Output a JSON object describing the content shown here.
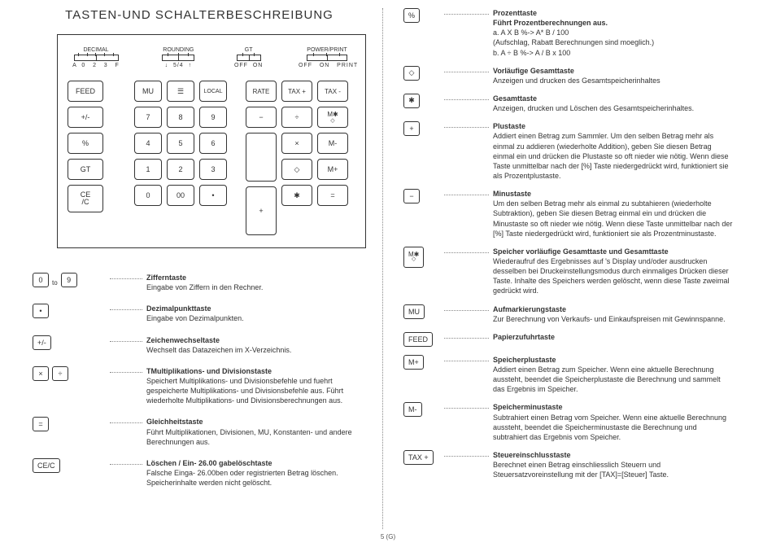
{
  "title": "TASTEN-UND SCHALTERBESCHREIBUNG",
  "page_num": "5 (G)",
  "switches": {
    "decimal": {
      "label": "DECIMAL",
      "vals": "A  0   2   3   F"
    },
    "rounding": {
      "label": "ROUNDING",
      "vals": "↓  5/4  ↑"
    },
    "gt": {
      "label": "GT",
      "vals": "OFF  ON"
    },
    "power": {
      "label": "POWER/PRINT",
      "vals": "OFF   ON   PRINT"
    }
  },
  "keys": {
    "row1": {
      "feed": "FEED",
      "mu": "MU",
      "paper": "☰",
      "local": "LOCAL",
      "rate": "RATE",
      "taxplus": "TAX +",
      "taxminus": "TAX -"
    },
    "row2": {
      "pm": "+/-",
      "n7": "7",
      "n8": "8",
      "n9": "9",
      "minus": "−",
      "div": "÷",
      "mstar_top": "M✱",
      "mstar_sub": "◇"
    },
    "row3": {
      "pct": "%",
      "n4": "4",
      "n5": "5",
      "n6": "6",
      "times": "×",
      "mminus": "M-"
    },
    "row4": {
      "gt": "GT",
      "n1": "1",
      "n2": "2",
      "n3": "3",
      "plus": "+",
      "diamond": "◇",
      "mplus": "M+"
    },
    "row5a": "CE",
    "row5b": "/C",
    "row5": {
      "n0": "0",
      "n00": "00",
      "dot": "•",
      "star": "✱",
      "eq": "="
    }
  },
  "left_items": [
    {
      "keys": [
        "0",
        "to",
        "9"
      ],
      "title": "Zifferntaste",
      "body": "Eingabe von Ziffern in den Rechner."
    },
    {
      "keys": [
        "•"
      ],
      "title": "Dezimalpunkttaste",
      "body": "Eingabe von Dezimalpunkten."
    },
    {
      "keys": [
        "+/-"
      ],
      "title": "Zeichenwechseltaste",
      "body": "Wechselt das Datazeichen im X-Verzeichnis."
    },
    {
      "keys": [
        "×",
        "÷"
      ],
      "title": "TMultiplikations- und Divisionstaste",
      "body": "Speichert Multiplikations- und Divisionsbefehle und fuehrt gespeicherte Multiplikations- und Divisionsbefehle aus. Führt wiederholte Multiplikations- und Divisionsberechnungen aus."
    },
    {
      "keys": [
        "="
      ],
      "title": "Gleichheitstaste",
      "body": "Führt Multiplikationen, Divisionen, MU, Konstanten- und andere Berechnungen aus."
    },
    {
      "keys": [
        "CE/C"
      ],
      "title": "Löschen / Ein- 26.00\ngabelöschtaste",
      "body": "Falsche Einga- 26.00ben oder registrierten Betrag löschen. Speicherinhalte werden nicht gelöscht."
    }
  ],
  "right_items": [
    {
      "keys": [
        "%"
      ],
      "title": "Prozenttaste",
      "body": "Führt Prozentberechnungen aus.\na. A X B %-> A* B / 100\n(Aufschlag, Rabatt Berechnungen sind moeglich.)\nb.   A ÷ B %-> A / B x 100"
    },
    {
      "keys": [
        "◇"
      ],
      "title": "Vorläufige Gesamttaste",
      "body": "Anzeigen und drucken des Gesamtspeicherinhaltes"
    },
    {
      "keys": [
        "✱"
      ],
      "title": "Gesamttaste",
      "body": "Anzeigen, drucken und Löschen des Gesamtspeicherinhaltes."
    },
    {
      "keys": [
        "+"
      ],
      "title": "Plustaste",
      "body": "Addiert einen Betrag zum Sammler. Um den selben Betrag mehr als einmal zu addieren (wiederholte Addition), geben Sie diesen Betrag einmal ein und drücken die Plustaste so oft nieder wie nötig. Wenn diese Taste unmittelbar nach der [%] Taste niedergedrückt wird, funktioniert sie als Prozentplustaste."
    },
    {
      "keys": [
        "−"
      ],
      "title": "Minustaste",
      "body": "Um den selben Betrag mehr als einmal zu subtahieren (wiederholte Subtraktion), geben Sie diesen Betrag einmal ein und drücken die Minustaste so oft nieder wie nötig. Wenn diese Taste unmittelbar nach der [%] Taste niedergedrückt wird, funktioniert sie als Prozentminustaste."
    },
    {
      "keys": [
        "M✱◇"
      ],
      "title": "Speicher vorläufige Gesamttaste und Gesamttaste",
      "body": "Wiederaufruf des Ergebnisses auf 's Display und/oder ausdrucken desselben bei Druckeinstellungsmodus durch einmaliges Drücken dieser Taste. Inhalte des Speichers werden gelöscht, wenn diese Taste zweimal gedrückt wird.",
      "special": "mstar"
    },
    {
      "keys": [
        "MU"
      ],
      "title": "Aufmarkierungstaste",
      "body": "Zur Berechnung von Verkaufs- und Einkaufspreisen mit Gewinnspanne."
    },
    {
      "keys": [
        "FEED"
      ],
      "title": "Papierzufuhrtaste",
      "body": ""
    },
    {
      "keys": [
        "M+"
      ],
      "title": "Speicherplustaste",
      "body": "Addiert einen Betrag zum Speicher. Wenn eine aktuelle Berechnung aussteht, beendet die Speicherplustaste die Berechnung und sammelt das Ergebnis im Speicher."
    },
    {
      "keys": [
        "M-"
      ],
      "title": "Speicherminustaste",
      "body": "Subtrahiert einen Betrag vom Speicher. Wenn eine aktuelle Berechnung aussteht, beendet die Speicherminustaste die Berechnung und subtrahiert das Ergebnis vom Speicher."
    },
    {
      "keys": [
        "TAX +"
      ],
      "title": "Steuereinschlusstaste",
      "body": "Berechnet einen Betrag einschliesslich Steuern und Steuersatzvoreinstellung mit der [TAX]=[Steuer] Taste."
    }
  ]
}
